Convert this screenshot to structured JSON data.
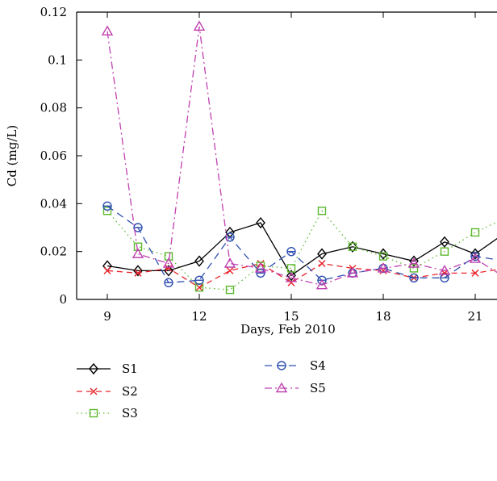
{
  "chart_data": {
    "type": "line",
    "xlabel": "Days, Feb 2010",
    "ylabel": "Cd (mg/L)",
    "xlim": [
      8,
      22
    ],
    "ylim": [
      0,
      0.12
    ],
    "xticks": [
      9,
      12,
      15,
      18,
      21
    ],
    "yticks": [
      0,
      0.02,
      0.04,
      0.06,
      0.08,
      0.1,
      0.12
    ],
    "ytick_labels": [
      "0",
      "0.02",
      "0.04",
      "0.06",
      "0.08",
      "0.1",
      "0.12"
    ],
    "x": [
      9,
      10,
      11,
      12,
      13,
      14,
      15,
      16,
      17,
      18,
      19,
      20,
      21,
      22
    ],
    "legend_position": "bottom",
    "series": [
      {
        "name": "S1",
        "color": "#000000",
        "marker": "diamond",
        "dash": "solid",
        "values": [
          0.014,
          0.012,
          0.012,
          0.016,
          0.028,
          0.032,
          0.01,
          0.019,
          0.022,
          0.019,
          0.016,
          0.024,
          0.019,
          0.028
        ]
      },
      {
        "name": "S2",
        "color": "#e8242a",
        "marker": "x",
        "dash": "dashed",
        "values": [
          0.012,
          0.011,
          0.013,
          0.005,
          0.012,
          0.015,
          0.007,
          0.015,
          0.013,
          0.012,
          0.009,
          0.011,
          0.011,
          0.013
        ]
      },
      {
        "name": "S3",
        "color": "#5cb82e",
        "marker": "square",
        "dash": "dotted",
        "values": [
          0.037,
          0.022,
          0.018,
          0.005,
          0.004,
          0.014,
          0.013,
          0.037,
          0.022,
          0.018,
          0.013,
          0.02,
          0.028,
          0.034
        ]
      },
      {
        "name": "S4",
        "color": "#3050b0",
        "marker": "circle",
        "dash": "longdash",
        "values": [
          0.039,
          0.03,
          0.007,
          0.008,
          0.026,
          0.011,
          0.02,
          0.008,
          0.011,
          0.013,
          0.009,
          0.009,
          0.018,
          0.016
        ]
      },
      {
        "name": "S5",
        "color": "#c040b0",
        "marker": "triangle",
        "dash": "dashdot",
        "values": [
          0.112,
          0.019,
          0.015,
          0.114,
          0.015,
          0.013,
          0.009,
          0.006,
          0.011,
          0.013,
          0.015,
          0.012,
          0.017,
          0.009
        ]
      }
    ]
  }
}
